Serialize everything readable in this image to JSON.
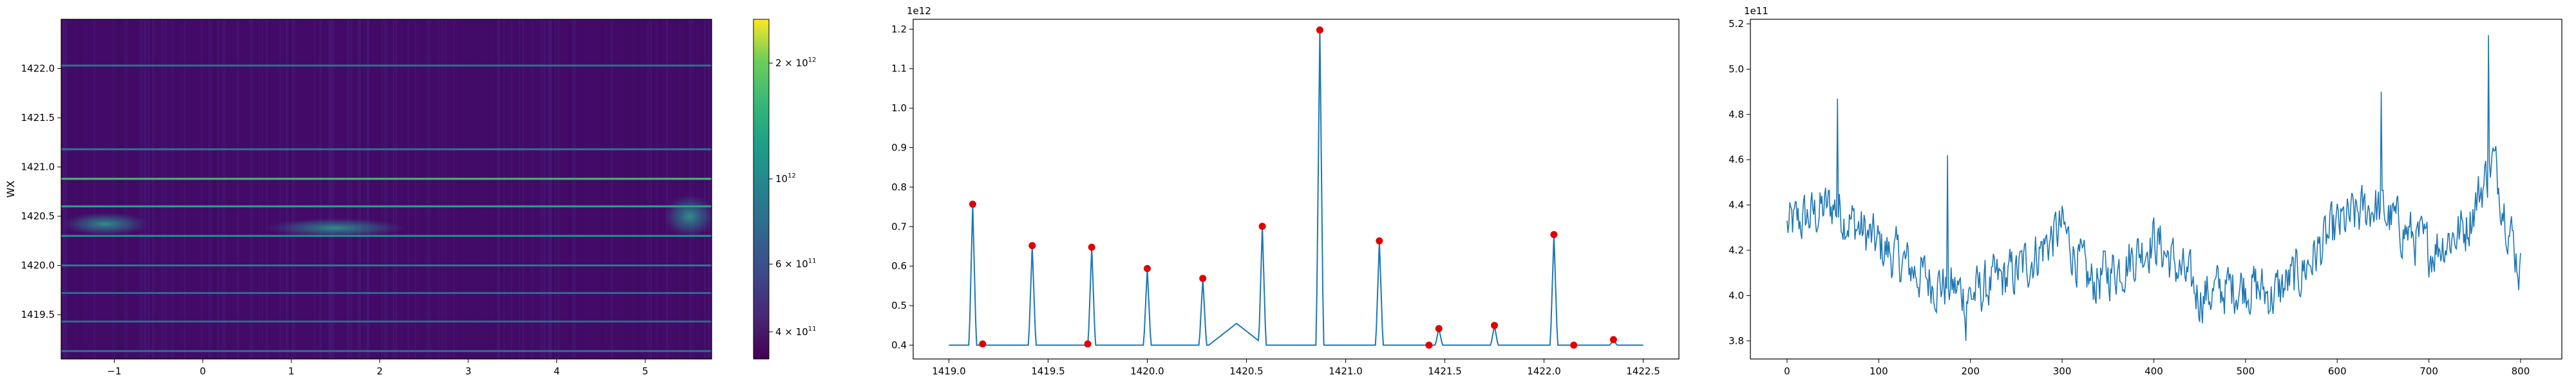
{
  "chart_data": [
    {
      "type": "heatmap",
      "ylabel": "WX",
      "xlabel": "",
      "xlim": [
        -1.6,
        5.75
      ],
      "ylim": [
        1419.05,
        1422.5
      ],
      "x_ticks": [
        -1,
        0,
        1,
        2,
        3,
        4,
        5
      ],
      "y_ticks": [
        1419.5,
        1420.0,
        1420.5,
        1421.0,
        1421.5,
        1422.0
      ],
      "colormap": "viridis",
      "background_color": "#440a68",
      "horizontal_lines": [
        {
          "y": 1419.13,
          "color": "#2d6f8e"
        },
        {
          "y": 1419.43,
          "color": "#2f6b8e"
        },
        {
          "y": 1419.72,
          "color": "#31688e"
        },
        {
          "y": 1420.0,
          "color": "#2a788e"
        },
        {
          "y": 1420.3,
          "color": "#21918c"
        },
        {
          "y": 1420.6,
          "color": "#22a884"
        },
        {
          "y": 1420.88,
          "color": "#44bf70"
        },
        {
          "y": 1421.18,
          "color": "#2a788e"
        },
        {
          "y": 1422.03,
          "color": "#2c728e"
        }
      ],
      "blobs": [
        {
          "x": -1.1,
          "y": 1420.42,
          "rx": 0.5,
          "ry": 0.12
        },
        {
          "x": 1.5,
          "y": 1420.38,
          "rx": 0.8,
          "ry": 0.1
        },
        {
          "x": 5.5,
          "y": 1420.5,
          "rx": 0.3,
          "ry": 0.22
        }
      ],
      "colorbar": {
        "scale": "log",
        "ticks": [
          {
            "value": 400000000000,
            "label": "4 × 10",
            "exp": "11"
          },
          {
            "value": 600000000000,
            "label": "6 × 10",
            "exp": "11"
          },
          {
            "value": 1000000000000,
            "label": "10",
            "exp": "12"
          },
          {
            "value": 2000000000000,
            "label": "2 × 10",
            "exp": "12"
          }
        ],
        "range": [
          340000000000,
          2600000000000
        ]
      }
    },
    {
      "type": "line",
      "offset_label": "1e12",
      "xlim": [
        1418.82,
        1422.68
      ],
      "ylim": [
        0.365,
        1.225
      ],
      "x_ticks": [
        1419.0,
        1419.5,
        1420.0,
        1420.5,
        1421.0,
        1421.5,
        1422.0,
        1422.5
      ],
      "y_ticks": [
        0.4,
        0.5,
        0.6,
        0.7,
        0.8,
        0.9,
        1.0,
        1.1,
        1.2
      ],
      "line_color": "#1f77b4",
      "baseline": 0.4,
      "x_start": 1419.0,
      "x_end": 1422.5,
      "peaks": [
        {
          "x": 1419.12,
          "y": 0.757
        },
        {
          "x": 1419.42,
          "y": 0.652
        },
        {
          "x": 1419.72,
          "y": 0.648
        },
        {
          "x": 1420.0,
          "y": 0.594
        },
        {
          "x": 1420.28,
          "y": 0.569
        },
        {
          "x": 1420.58,
          "y": 0.701
        },
        {
          "x": 1420.87,
          "y": 1.198
        },
        {
          "x": 1421.17,
          "y": 0.664
        },
        {
          "x": 1421.47,
          "y": 0.442
        },
        {
          "x": 1421.75,
          "y": 0.45
        },
        {
          "x": 1422.05,
          "y": 0.68
        },
        {
          "x": 1422.35,
          "y": 0.414
        }
      ],
      "bump": {
        "x": 1420.45,
        "y": 0.455,
        "width": 0.14
      },
      "markers": [
        {
          "x": 1419.12,
          "y": 0.757
        },
        {
          "x": 1419.17,
          "y": 0.403
        },
        {
          "x": 1419.42,
          "y": 0.652
        },
        {
          "x": 1419.7,
          "y": 0.403
        },
        {
          "x": 1419.72,
          "y": 0.648
        },
        {
          "x": 1420.0,
          "y": 0.594
        },
        {
          "x": 1420.28,
          "y": 0.569
        },
        {
          "x": 1420.58,
          "y": 0.701
        },
        {
          "x": 1420.87,
          "y": 1.198
        },
        {
          "x": 1421.17,
          "y": 0.664
        },
        {
          "x": 1421.42,
          "y": 0.4
        },
        {
          "x": 1421.47,
          "y": 0.442
        },
        {
          "x": 1421.75,
          "y": 0.45
        },
        {
          "x": 1422.05,
          "y": 0.68
        },
        {
          "x": 1422.15,
          "y": 0.4
        },
        {
          "x": 1422.35,
          "y": 0.414
        }
      ],
      "marker_color": "#e00000"
    },
    {
      "type": "line",
      "offset_label": "1e11",
      "xlim": [
        -40,
        845
      ],
      "ylim": [
        3.72,
        5.22
      ],
      "x_ticks": [
        0,
        100,
        200,
        300,
        400,
        500,
        600,
        700,
        800
      ],
      "y_ticks": [
        3.8,
        4.0,
        4.2,
        4.4,
        4.6,
        4.8,
        5.0,
        5.2
      ],
      "line_color": "#1f77b4",
      "n_points": 801,
      "trend": [
        {
          "x": 0,
          "y": 4.3
        },
        {
          "x": 50,
          "y": 4.4
        },
        {
          "x": 100,
          "y": 4.22
        },
        {
          "x": 150,
          "y": 4.08
        },
        {
          "x": 200,
          "y": 4.0
        },
        {
          "x": 250,
          "y": 4.1
        },
        {
          "x": 300,
          "y": 4.3
        },
        {
          "x": 330,
          "y": 4.05
        },
        {
          "x": 370,
          "y": 4.15
        },
        {
          "x": 400,
          "y": 4.25
        },
        {
          "x": 450,
          "y": 4.0
        },
        {
          "x": 500,
          "y": 4.05
        },
        {
          "x": 530,
          "y": 4.0
        },
        {
          "x": 560,
          "y": 4.1
        },
        {
          "x": 600,
          "y": 4.3
        },
        {
          "x": 640,
          "y": 4.4
        },
        {
          "x": 700,
          "y": 4.2
        },
        {
          "x": 740,
          "y": 4.3
        },
        {
          "x": 770,
          "y": 4.6
        },
        {
          "x": 800,
          "y": 4.1
        }
      ],
      "noise_amplitude": 0.13,
      "spikes": [
        {
          "x": 55,
          "y": 4.87
        },
        {
          "x": 175,
          "y": 4.62
        },
        {
          "x": 648,
          "y": 4.9
        },
        {
          "x": 765,
          "y": 5.15
        },
        {
          "x": 195,
          "y": 3.8
        }
      ]
    }
  ]
}
